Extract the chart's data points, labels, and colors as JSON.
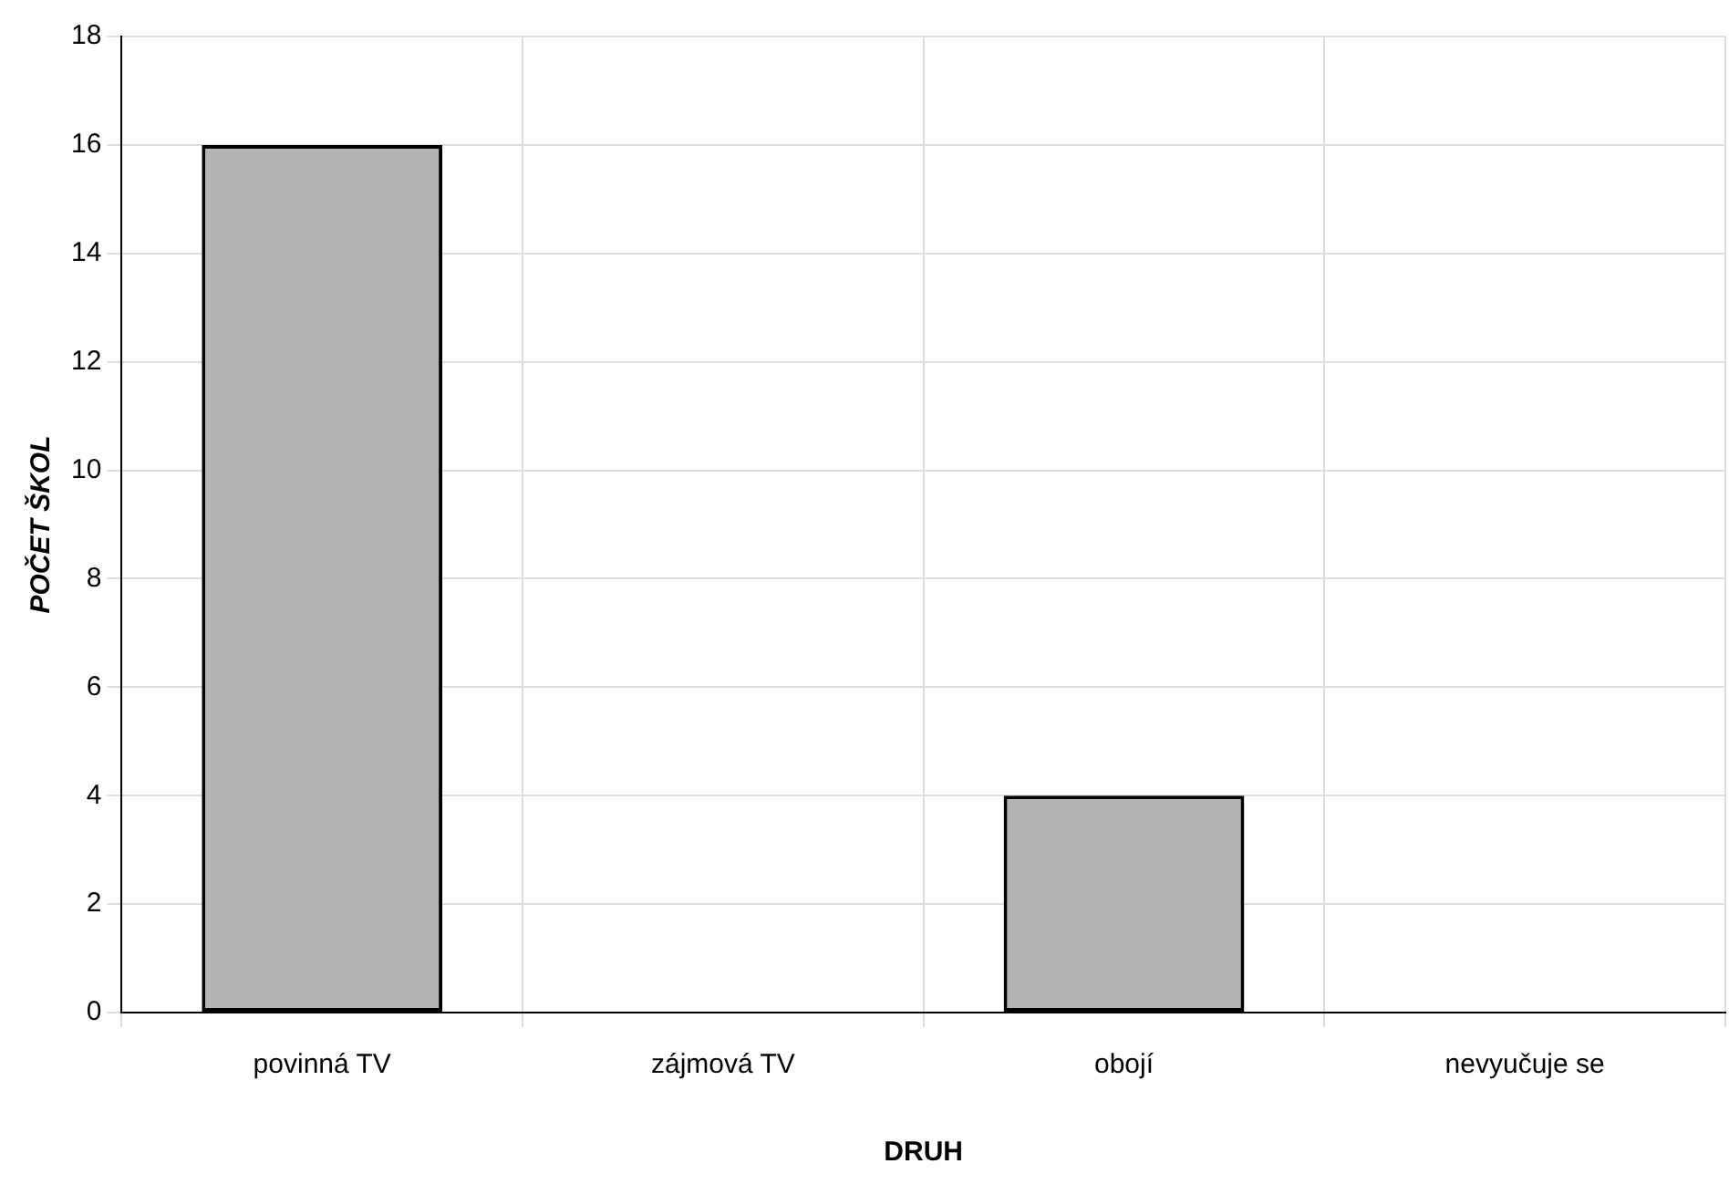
{
  "chart_data": {
    "type": "bar",
    "xlabel": "DRUH",
    "ylabel": "POČET ŠKOL",
    "categories": [
      "povinná TV",
      "zájmová TV",
      "obojí",
      "nevyučuje se"
    ],
    "values": [
      16,
      0,
      4,
      0
    ],
    "color": "#b4b4b4",
    "ylim": [
      0,
      18
    ],
    "yticks": [
      0,
      2,
      4,
      6,
      8,
      10,
      12,
      14,
      16,
      18
    ],
    "grid": true
  }
}
